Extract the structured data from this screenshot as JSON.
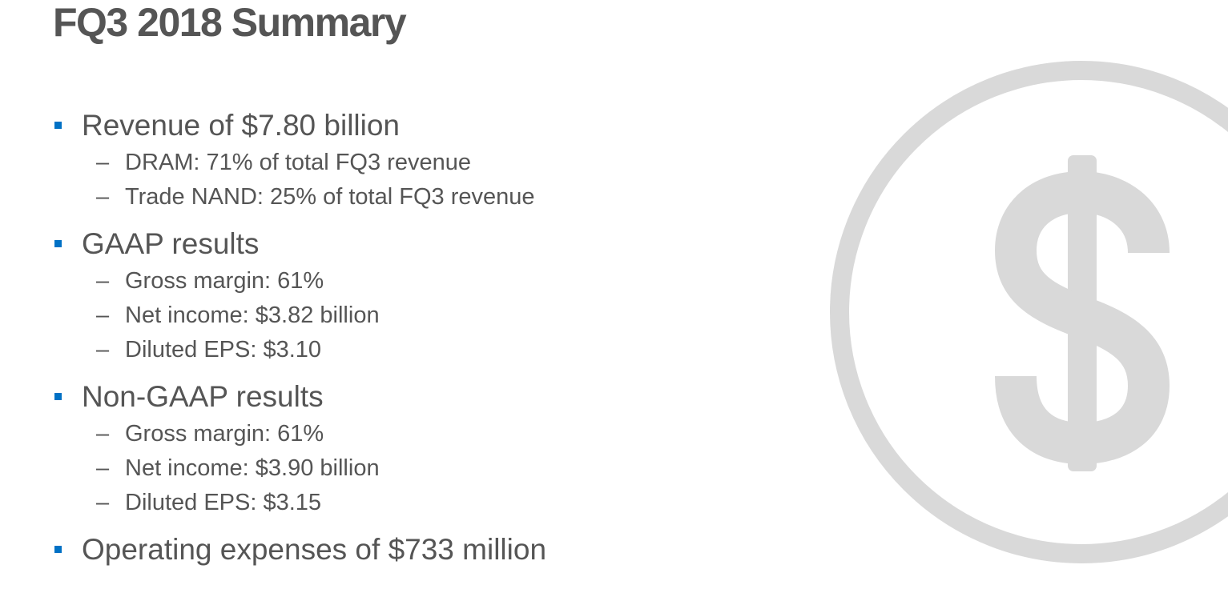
{
  "title": "FQ3 2018 Summary",
  "bullets": [
    {
      "label": "Revenue of $7.80 billion",
      "subs": [
        "DRAM: 71% of total FQ3 revenue",
        "Trade NAND: 25% of total FQ3 revenue"
      ]
    },
    {
      "label": "GAAP results",
      "subs": [
        "Gross margin: 61%",
        "Net income: $3.82 billion",
        "Diluted EPS: $3.10"
      ]
    },
    {
      "label": "Non-GAAP results",
      "subs": [
        "Gross margin: 61%",
        "Net income: $3.90 billion",
        "Diluted EPS: $3.15"
      ]
    },
    {
      "label": "Operating expenses of $733 million",
      "subs": []
    }
  ],
  "sub_marker": "–",
  "icons": {
    "bullet": "square-bullet-icon",
    "decoration": "dollar-circle-icon"
  },
  "colors": {
    "text": "#555555",
    "bullet": "#0071c5",
    "decoration": "#d9d9d9"
  }
}
